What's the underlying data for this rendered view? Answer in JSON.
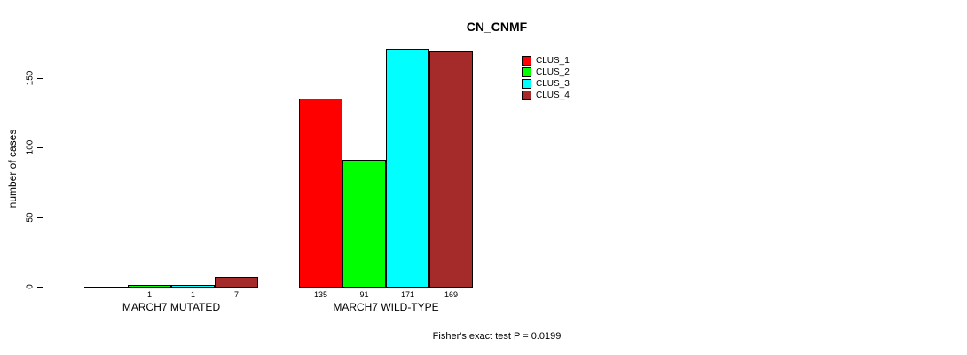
{
  "chart_data": {
    "type": "bar",
    "title": "CN_CNMF",
    "ylabel": "number of cases",
    "xlabel": "",
    "yticks": [
      0,
      50,
      100,
      150
    ],
    "ylim": [
      0,
      171
    ],
    "grid": false,
    "legend_position": "top-right",
    "legend_entries": [
      "CLUS_1",
      "CLUS_2",
      "CLUS_3",
      "CLUS_4"
    ],
    "series_colors": [
      "#FF0000",
      "#00FF00",
      "#00FFFF",
      "#A52A2A"
    ],
    "groups": [
      {
        "label": "MARCH7 MUTATED",
        "values": [
          0,
          1,
          1,
          7
        ],
        "bar_labels": [
          "",
          "1",
          "1",
          "7"
        ]
      },
      {
        "label": "MARCH7 WILD-TYPE",
        "values": [
          135,
          91,
          171,
          169
        ],
        "bar_labels": [
          "135",
          "91",
          "171",
          "169"
        ]
      }
    ],
    "annotation": "Fisher's exact test P = 0.0199"
  }
}
